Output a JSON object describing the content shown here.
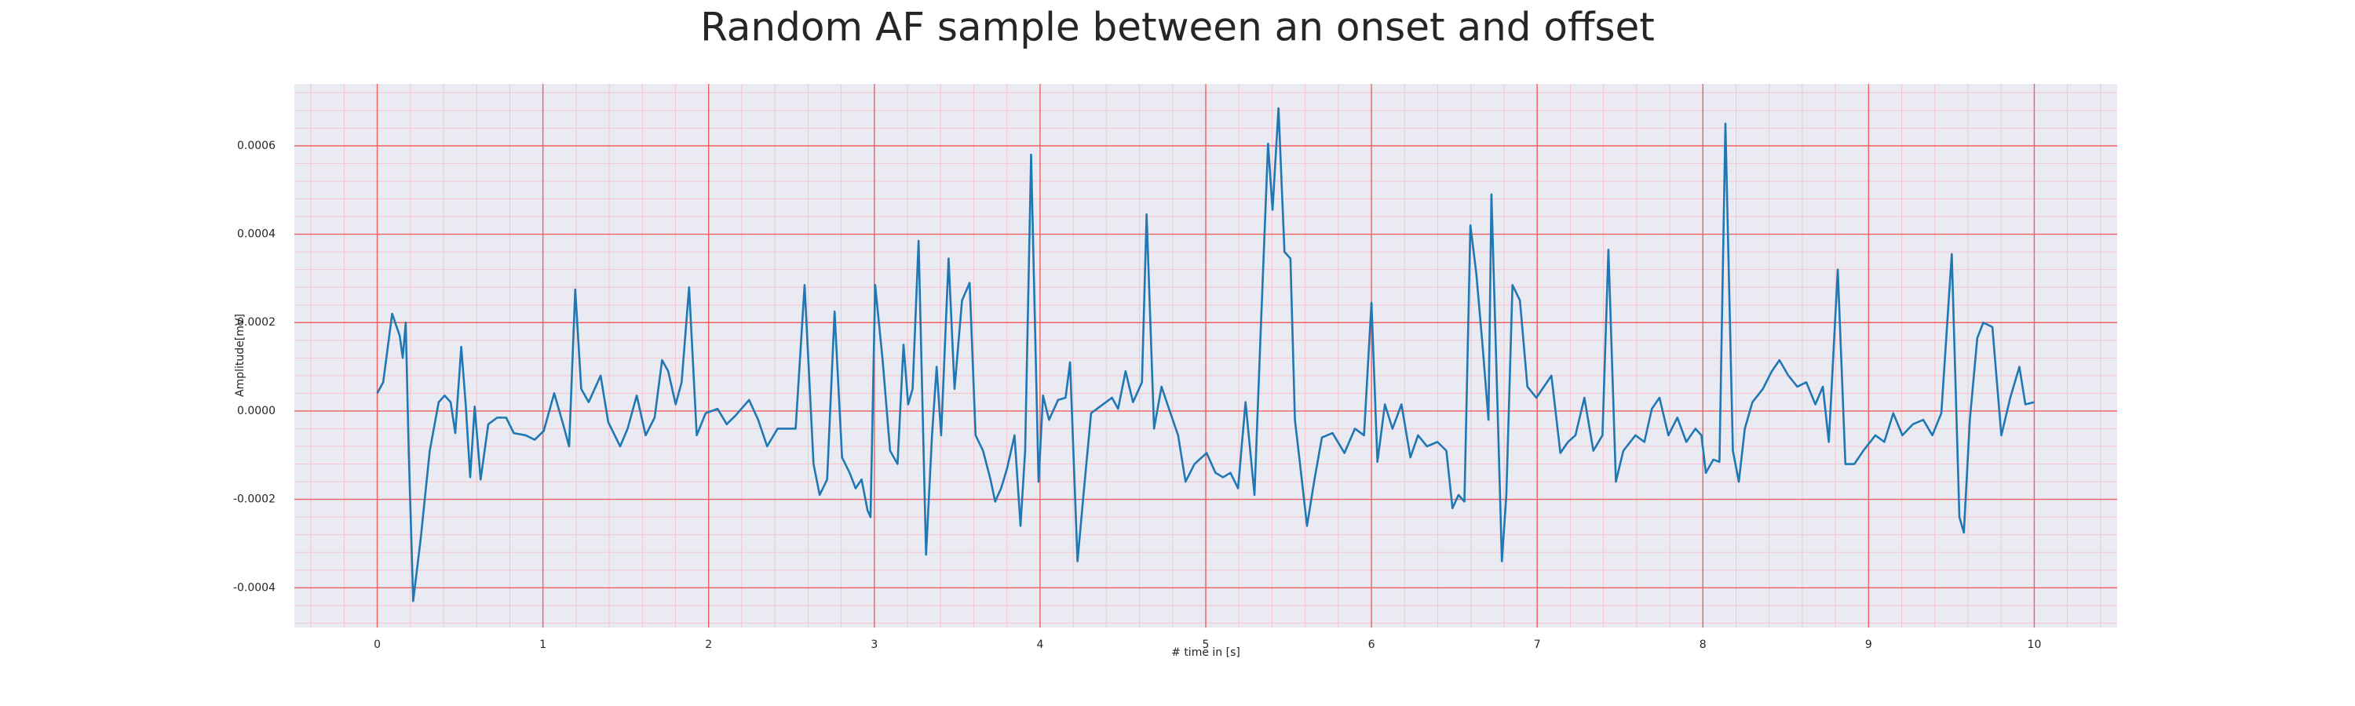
{
  "chart_data": {
    "type": "line",
    "title": "Random AF sample between an onset and offset",
    "xlabel": "# time in [s]",
    "ylabel": "Amplitude[mV]",
    "xlim": [
      -0.5,
      10.5
    ],
    "ylim": [
      -0.00049,
      0.00074
    ],
    "xticks": [
      0,
      1,
      2,
      3,
      4,
      5,
      6,
      7,
      8,
      9,
      10
    ],
    "yticks": [
      -0.0004,
      -0.0002,
      {
        "value": 0,
        "label": "0.0000"
      },
      0.0002,
      0.0004,
      0.0006
    ],
    "grid": true,
    "minor_grid": true,
    "grid_color": "#f06060",
    "minor_grid_color": "#f5c4cc",
    "background": "#eaeaf2",
    "series": [
      {
        "color": "#1f77b4",
        "x": [
          0,
          0.036,
          0.09,
          0.136,
          0.154,
          0.172,
          0.19,
          0.217,
          0.262,
          0.317,
          0.371,
          0.407,
          0.443,
          0.471,
          0.507,
          0.534,
          0.561,
          0.588,
          0.624,
          0.67,
          0.724,
          0.778,
          0.824,
          0.896,
          0.95,
          1.005,
          1.068,
          1.122,
          1.158,
          1.195,
          1.231,
          1.276,
          1.348,
          1.394,
          1.466,
          1.511,
          1.566,
          1.62,
          1.674,
          1.719,
          1.756,
          1.801,
          1.837,
          1.882,
          1.928,
          1.982,
          2.054,
          2.109,
          2.163,
          2.244,
          2.299,
          2.353,
          2.416,
          2.525,
          2.579,
          2.633,
          2.67,
          2.715,
          2.76,
          2.805,
          2.851,
          2.887,
          2.923,
          2.959,
          2.977,
          3.005,
          3.05,
          3.095,
          3.14,
          3.176,
          3.204,
          3.231,
          3.267,
          3.312,
          3.348,
          3.376,
          3.403,
          3.448,
          3.484,
          3.529,
          3.575,
          3.611,
          3.656,
          3.701,
          3.729,
          3.765,
          3.801,
          3.846,
          3.882,
          3.91,
          3.946,
          3.991,
          4.018,
          4.054,
          4.109,
          4.154,
          4.181,
          4.226,
          4.262,
          4.308,
          4.38,
          4.434,
          4.471,
          4.516,
          4.561,
          4.615,
          4.643,
          4.688,
          4.733,
          4.769,
          4.833,
          4.878,
          4.932,
          5.005,
          5.059,
          5.104,
          5.149,
          5.195,
          5.24,
          5.294,
          5.33,
          5.376,
          5.403,
          5.439,
          5.475,
          5.511,
          5.538,
          5.575,
          5.611,
          5.656,
          5.701,
          5.765,
          5.837,
          5.9,
          5.955,
          6.0,
          6.036,
          6.081,
          6.127,
          6.181,
          6.235,
          6.281,
          6.335,
          6.398,
          6.452,
          6.489,
          6.525,
          6.561,
          6.597,
          6.633,
          6.67,
          6.706,
          6.724,
          6.76,
          6.787,
          6.814,
          6.851,
          6.896,
          6.941,
          6.995,
          7.05,
          7.086,
          7.14,
          7.186,
          7.231,
          7.285,
          7.339,
          7.394,
          7.43,
          7.475,
          7.52,
          7.593,
          7.647,
          7.692,
          7.738,
          7.792,
          7.846,
          7.9,
          7.955,
          7.991,
          8.018,
          8.063,
          8.1,
          8.136,
          8.181,
          8.217,
          8.253,
          8.299,
          8.362,
          8.416,
          8.462,
          8.516,
          8.57,
          8.624,
          8.679,
          8.724,
          8.76,
          8.814,
          8.86,
          8.914,
          8.968,
          9.041,
          9.095,
          9.149,
          9.204,
          9.267,
          9.33,
          9.385,
          9.439,
          9.502,
          9.548,
          9.575,
          9.611,
          9.656,
          9.692,
          9.747,
          9.801,
          9.855,
          9.91,
          9.946,
          10.0
        ],
        "values": [
          4e-05,
          6.5e-05,
          0.00022,
          0.00017,
          0.00012,
          0.0002,
          -9e-05,
          -0.00043,
          -0.00029,
          -9e-05,
          2e-05,
          3.5e-05,
          2e-05,
          -5e-05,
          0.000145,
          1.5e-05,
          -0.00015,
          1e-05,
          -0.000155,
          -3e-05,
          -1.5e-05,
          -1.5e-05,
          -5e-05,
          -5.5e-05,
          -6.5e-05,
          -4.5e-05,
          4e-05,
          -3e-05,
          -8e-05,
          0.000275,
          5e-05,
          2e-05,
          8e-05,
          -2.5e-05,
          -8e-05,
          -4e-05,
          3.5e-05,
          -5.5e-05,
          -1.5e-05,
          0.000115,
          9e-05,
          1.5e-05,
          6.5e-05,
          0.00028,
          -5.5e-05,
          -5e-06,
          5e-06,
          -3e-05,
          -1e-05,
          2.5e-05,
          -2e-05,
          -8e-05,
          -4e-05,
          -4e-05,
          0.000285,
          -0.00012,
          -0.00019,
          -0.000155,
          0.000225,
          -0.000105,
          -0.00014,
          -0.000175,
          -0.000155,
          -0.000225,
          -0.00024,
          0.000285,
          0.000115,
          -9e-05,
          -0.00012,
          0.00015,
          1.5e-05,
          5e-05,
          0.000385,
          -0.000325,
          -5.5e-05,
          0.0001,
          -5.5e-05,
          0.000345,
          5e-05,
          0.00025,
          0.00029,
          -5.5e-05,
          -9e-05,
          -0.000155,
          -0.000205,
          -0.000175,
          -0.00013,
          -5.5e-05,
          -0.00026,
          -9e-05,
          0.00058,
          -0.00016,
          3.5e-05,
          -2e-05,
          2.5e-05,
          3e-05,
          0.00011,
          -0.00034,
          -0.00019,
          -5e-06,
          1.5e-05,
          3e-05,
          5e-06,
          9e-05,
          2e-05,
          6.5e-05,
          0.000445,
          -4e-05,
          5.5e-05,
          1.5e-05,
          -5.5e-05,
          -0.00016,
          -0.00012,
          -9.5e-05,
          -0.00014,
          -0.00015,
          -0.00014,
          -0.000175,
          2e-05,
          -0.00019,
          0.000165,
          0.000605,
          0.000455,
          0.000685,
          0.00036,
          0.000345,
          -2e-05,
          -0.00014,
          -0.00026,
          -0.000155,
          -6e-05,
          -5e-05,
          -9.5e-05,
          -4e-05,
          -5.5e-05,
          0.000245,
          -0.000115,
          1.5e-05,
          -4e-05,
          1.5e-05,
          -0.000105,
          -5.5e-05,
          -8e-05,
          -7e-05,
          -9e-05,
          -0.00022,
          -0.00019,
          -0.000205,
          0.00042,
          0.00031,
          0.00015,
          -2e-05,
          0.00049,
          2e-05,
          -0.00034,
          -0.00019,
          0.000285,
          0.00025,
          5.5e-05,
          3e-05,
          6e-05,
          8e-05,
          -9.5e-05,
          -7e-05,
          -5.5e-05,
          3e-05,
          -9e-05,
          -5.5e-05,
          0.000365,
          -0.00016,
          -9e-05,
          -5.5e-05,
          -7e-05,
          5e-06,
          3e-05,
          -5.5e-05,
          -1.5e-05,
          -7e-05,
          -4e-05,
          -5.5e-05,
          -0.00014,
          -0.00011,
          -0.000115,
          0.00065,
          -9e-05,
          -0.00016,
          -4e-05,
          2e-05,
          5e-05,
          9e-05,
          0.000115,
          8e-05,
          5.5e-05,
          6.5e-05,
          1.5e-05,
          5.5e-05,
          -7e-05,
          0.00032,
          -0.00012,
          -0.00012,
          -9e-05,
          -5.5e-05,
          -7e-05,
          -5e-06,
          -5.5e-05,
          -3e-05,
          -2e-05,
          -5.5e-05,
          -5e-06,
          0.000355,
          -0.00024,
          -0.000275,
          -2e-05,
          0.000165,
          0.0002,
          0.00019,
          -5.5e-05,
          3e-05,
          0.0001,
          1.5e-05,
          2e-05
        ]
      }
    ]
  }
}
